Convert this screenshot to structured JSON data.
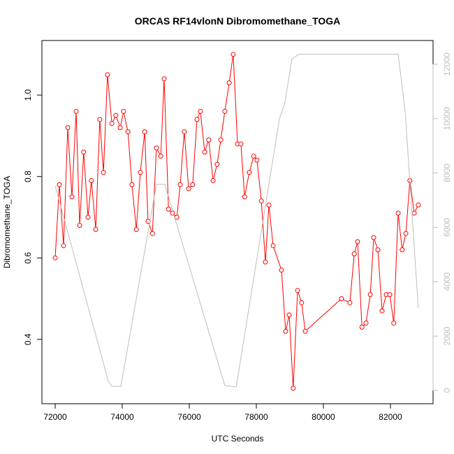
{
  "chart_data": {
    "type": "line",
    "title": "ORCAS RF14vlonN Dibromomethane_TOGA",
    "x_label": "UTC Seconds",
    "y_label": "Dibromomethane_TOGA",
    "xlim": [
      71604,
      83271
    ],
    "ylim": [
      0.242,
      1.134
    ],
    "y2lim": [
      -488,
      12874
    ],
    "xticks": [
      72000,
      74000,
      76000,
      78000,
      80000,
      82000
    ],
    "yticks": [
      0.4,
      0.6,
      0.8,
      1.0
    ],
    "y2ticks": [
      0,
      2000,
      4000,
      6000,
      8000,
      10000,
      12000
    ],
    "series": [
      {
        "color": "#ff0000",
        "markers": true,
        "x": [
          72000,
          72125,
          72250,
          72375,
          72500,
          72625,
          72730,
          72850,
          72980,
          73080,
          73210,
          73330,
          73440,
          73560,
          73690,
          73810,
          73940,
          74040,
          74170,
          74290,
          74420,
          74540,
          74670,
          74770,
          74900,
          75020,
          75150,
          75250,
          75380,
          75500,
          75630,
          75730,
          75850,
          75980,
          76100,
          76230,
          76330,
          76460,
          76580,
          76710,
          76830,
          76940,
          77060,
          77190,
          77310,
          77440,
          77540,
          77650,
          77790,
          77920,
          78020,
          78150,
          78270,
          78375,
          78500,
          78750,
          78875,
          78980,
          79100,
          79230,
          79350,
          79460,
          80540,
          80790,
          80920,
          81020,
          81150,
          81270,
          81400,
          81500,
          81625,
          81750,
          81875,
          81980,
          82100,
          82230,
          82350,
          82460,
          82580,
          82710,
          82830
        ],
        "values": [
          0.6,
          0.78,
          0.63,
          0.92,
          0.75,
          0.96,
          0.68,
          0.86,
          0.7,
          0.79,
          0.67,
          0.94,
          0.81,
          1.05,
          0.93,
          0.95,
          0.92,
          0.96,
          0.91,
          0.78,
          0.67,
          0.81,
          0.91,
          0.69,
          0.66,
          0.87,
          0.85,
          1.04,
          0.72,
          0.71,
          0.7,
          0.78,
          0.91,
          0.77,
          0.78,
          0.94,
          0.96,
          0.86,
          0.89,
          0.79,
          0.83,
          0.89,
          0.96,
          1.03,
          1.1,
          0.88,
          0.88,
          0.75,
          0.81,
          0.85,
          0.84,
          0.74,
          0.59,
          0.73,
          0.63,
          0.57,
          0.42,
          0.46,
          0.28,
          0.52,
          0.49,
          0.42,
          0.5,
          0.49,
          0.61,
          0.64,
          0.43,
          0.44,
          0.51,
          0.65,
          0.62,
          0.47,
          0.51,
          0.51,
          0.44,
          0.71,
          0.62,
          0.66,
          0.79,
          0.71,
          0.73
        ]
      },
      {
        "color": "#bebebe",
        "axis": "y2",
        "markers": false,
        "x": [
          72000,
          73580,
          73690,
          73960,
          75020,
          75270,
          77060,
          77400,
          78690,
          78850,
          79060,
          79270,
          82230,
          82440,
          82830
        ],
        "values": [
          7530,
          360,
          150,
          150,
          7580,
          7580,
          180,
          130,
          10000,
          10570,
          12190,
          12370,
          12370,
          10260,
          3030
        ]
      }
    ]
  }
}
